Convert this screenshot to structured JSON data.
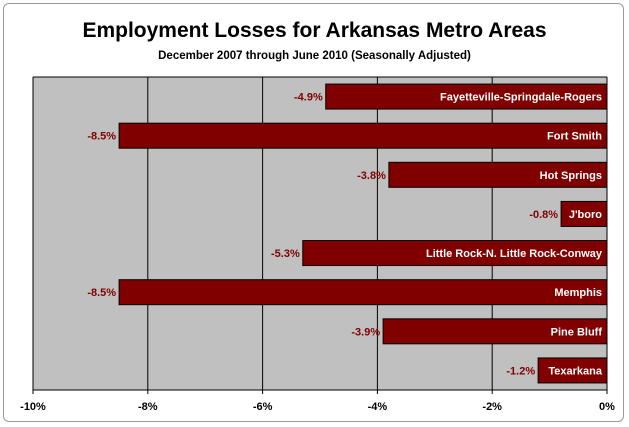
{
  "chart_data": {
    "type": "bar",
    "orientation": "horizontal",
    "title": "Employment Losses for Arkansas Metro Areas",
    "subtitle": "December 2007 through June 2010 (Seasonally Adjusted)",
    "categories": [
      "Fayetteville-Springdale-Rogers",
      "Fort Smith",
      "Hot Springs",
      "J'boro",
      "Little Rock-N. Little Rock-Conway",
      "Memphis",
      "Pine Bluff",
      "Texarkana"
    ],
    "values": [
      -4.9,
      -8.5,
      -3.8,
      -0.8,
      -5.3,
      -8.5,
      -3.9,
      -1.2
    ],
    "value_labels": [
      "-4.9%",
      "-8.5%",
      "-3.8%",
      "-0.8%",
      "-5.3%",
      "-8.5%",
      "-3.9%",
      "-1.2%"
    ],
    "xlim": [
      -10,
      0
    ],
    "x_ticks": [
      -10,
      -8,
      -6,
      -4,
      -2,
      0
    ],
    "x_tick_labels": [
      "-10%",
      "-8%",
      "-6%",
      "-4%",
      "-2%",
      "0%"
    ],
    "xlabel": "",
    "ylabel": "",
    "grid": "vertical",
    "legend": "none",
    "colors": {
      "bar_fill": "#800000",
      "bar_outline": "#000000",
      "value_label": "#800000",
      "plot_background": "#c0c0c0",
      "gridline": "#000000"
    }
  }
}
